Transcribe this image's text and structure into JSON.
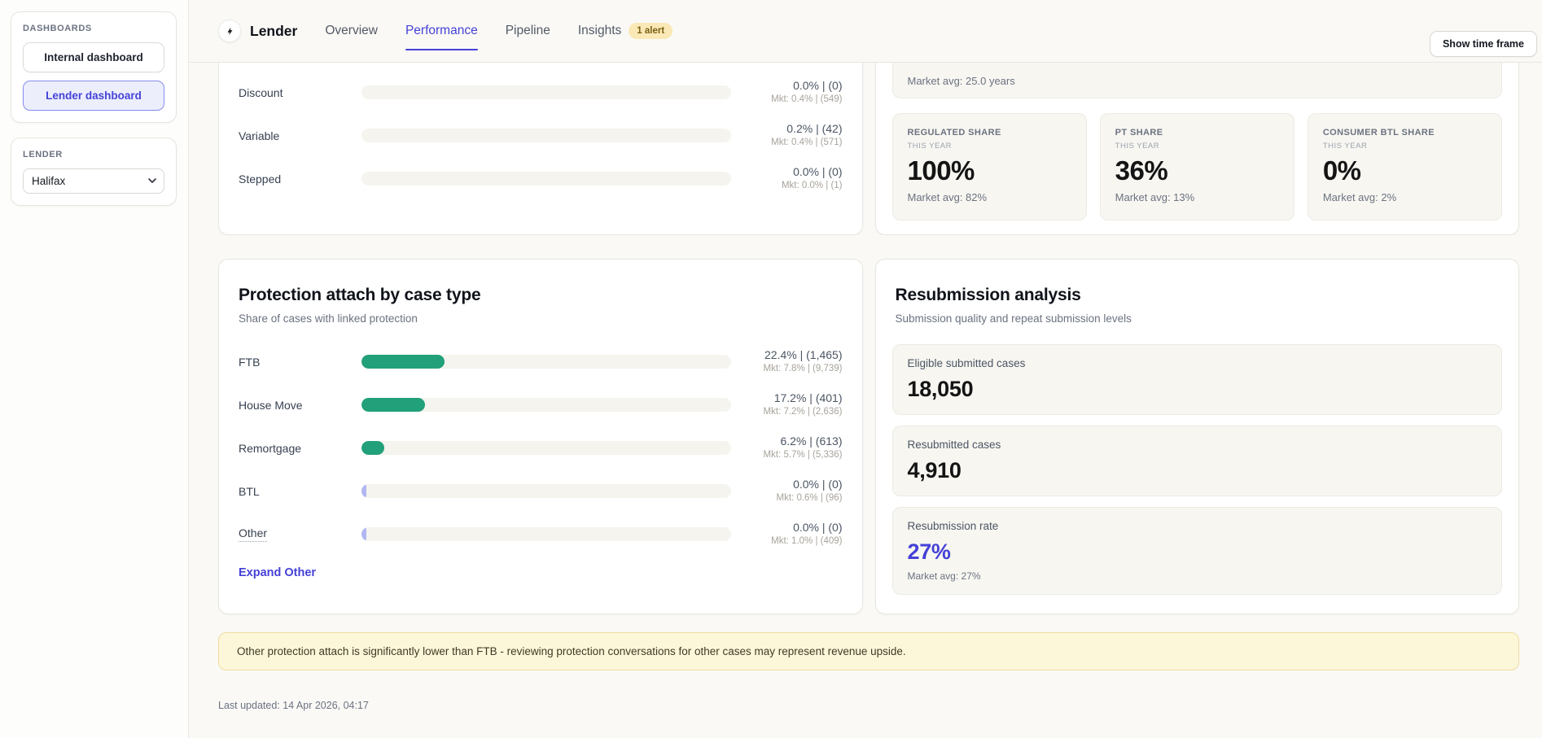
{
  "sidebar": {
    "dashboards_label": "DASHBOARDS",
    "items": [
      {
        "label": "Internal dashboard",
        "active": false
      },
      {
        "label": "Lender dashboard",
        "active": true
      }
    ],
    "lender_label": "LENDER",
    "lender_value": "Halifax"
  },
  "nav": {
    "title": "Lender",
    "tabs": [
      {
        "label": "Overview"
      },
      {
        "label": "Performance",
        "active": true
      },
      {
        "label": "Pipeline"
      },
      {
        "label": "Insights",
        "badge": "1 alert"
      }
    ],
    "timeframe_button": "Show time frame"
  },
  "product_mix": {
    "rows": [
      {
        "label": "Discount",
        "pct": 0.0,
        "value_line": "0.0% | (0)",
        "market_line": "Mkt: 0.4% | (549)"
      },
      {
        "label": "Variable",
        "pct": 0.2,
        "value_line": "0.2% | (42)",
        "market_line": "Mkt: 0.4% | (571)"
      },
      {
        "label": "Stepped",
        "pct": 0.0,
        "value_line": "0.0% | (0)",
        "market_line": "Mkt: 0.0% | (1)"
      }
    ]
  },
  "term_card": {
    "market_avg_text": "Market avg: 25.0 years"
  },
  "share_stats": [
    {
      "label": "REGULATED SHARE",
      "sublabel": "THIS YEAR",
      "value": "100%",
      "market": "Market avg: 82%"
    },
    {
      "label": "PT SHARE",
      "sublabel": "THIS YEAR",
      "value": "36%",
      "market": "Market avg: 13%"
    },
    {
      "label": "CONSUMER BTL SHARE",
      "sublabel": "THIS YEAR",
      "value": "0%",
      "market": "Market avg: 2%"
    }
  ],
  "protection": {
    "title": "Protection attach by case type",
    "subtitle": "Share of cases with linked protection",
    "rows": [
      {
        "label": "FTB",
        "pct": 22.4,
        "value_line": "22.4% | (1,465)",
        "market_line": "Mkt: 7.8% | (9,739)"
      },
      {
        "label": "House Move",
        "pct": 17.2,
        "value_line": "17.2% | (401)",
        "market_line": "Mkt: 7.2% | (2,636)"
      },
      {
        "label": "Remortgage",
        "pct": 6.2,
        "value_line": "6.2% | (613)",
        "market_line": "Mkt: 5.7% | (5,336)"
      },
      {
        "label": "BTL",
        "pct": 0.0,
        "value_line": "0.0% | (0)",
        "market_line": "Mkt: 0.6% | (96)",
        "sliver": true
      },
      {
        "label": "Other",
        "pct": 0.0,
        "value_line": "0.0% | (0)",
        "market_line": "Mkt: 1.0% | (409)",
        "sliver": true,
        "underline": true
      }
    ],
    "expand_link": "Expand Other"
  },
  "resubmission": {
    "title": "Resubmission analysis",
    "subtitle": "Submission quality and repeat submission levels",
    "stats": [
      {
        "label": "Eligible submitted cases",
        "value": "18,050"
      },
      {
        "label": "Resubmitted cases",
        "value": "4,910"
      },
      {
        "label": "Resubmission rate",
        "value": "27%",
        "accent": true,
        "market": "Market avg: 27%"
      }
    ]
  },
  "insight_banner": "Other protection attach is significantly lower than FTB - reviewing protection conversations for other cases may represent revenue upside.",
  "footer": "Last updated: 14 Apr 2026, 04:17",
  "colors": {
    "accent_indigo": "#4541d6",
    "bar_green": "#21a079",
    "bar_lavender": "#b1b6f2",
    "badge_bg": "#fae9b6",
    "banner_bg": "#fdf7da",
    "track_bg": "#f5f4ee"
  }
}
